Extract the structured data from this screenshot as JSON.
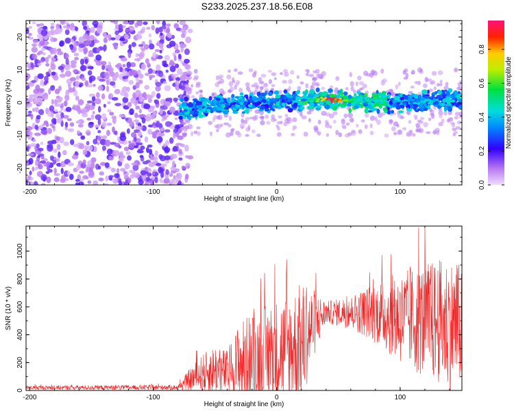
{
  "title": "S233.2025.237.18.56.E08",
  "chart_data": [
    {
      "type": "heatmap",
      "xlabel": "Height of straight line (km)",
      "ylabel": "Frequency (Hz)",
      "xlim": [
        -203,
        150
      ],
      "ylim": [
        -25,
        25
      ],
      "x_ticks": [
        -200,
        -100,
        0,
        100
      ],
      "y_ticks": [
        -20,
        -10,
        0,
        10,
        20
      ],
      "colorbar": {
        "label": "Normalized spectral amplitude",
        "range": [
          0.0,
          0.97
        ],
        "ticks": [
          0.0,
          0.2,
          0.4,
          0.6,
          0.8
        ]
      },
      "features": [
        {
          "region": "noise",
          "x_range": [
            -203,
            -78
          ],
          "freq_range": [
            -25,
            25
          ],
          "amplitude": 0.15
        },
        {
          "region": "signal-band",
          "x_range": [
            -78,
            150
          ],
          "center_freq": [
            -2,
            0,
            1,
            0,
            1
          ],
          "amplitude_peak": 0.97,
          "peak_x": 45
        }
      ]
    },
    {
      "type": "line",
      "xlabel": "Height of straight line (km)",
      "ylabel": "SNR (10 * v/v)",
      "xlim": [
        -203,
        150
      ],
      "ylim": [
        0,
        1180
      ],
      "x_ticks": [
        -200,
        -100,
        0,
        100
      ],
      "y_ticks": [
        0,
        200,
        400,
        600,
        800,
        1000
      ],
      "color": "#ee2222",
      "envelope": {
        "x": [
          -203,
          -80,
          -70,
          -60,
          -50,
          -40,
          -30,
          -20,
          -10,
          0,
          10,
          20,
          30,
          40,
          60,
          80,
          100,
          120,
          140,
          150
        ],
        "mean": [
          20,
          22,
          80,
          120,
          150,
          130,
          200,
          220,
          250,
          280,
          300,
          330,
          480,
          560,
          560,
          560,
          520,
          500,
          480,
          460
        ],
        "spread": [
          15,
          18,
          80,
          140,
          180,
          160,
          300,
          340,
          360,
          380,
          400,
          450,
          250,
          80,
          120,
          220,
          330,
          420,
          480,
          450
        ]
      }
    }
  ]
}
